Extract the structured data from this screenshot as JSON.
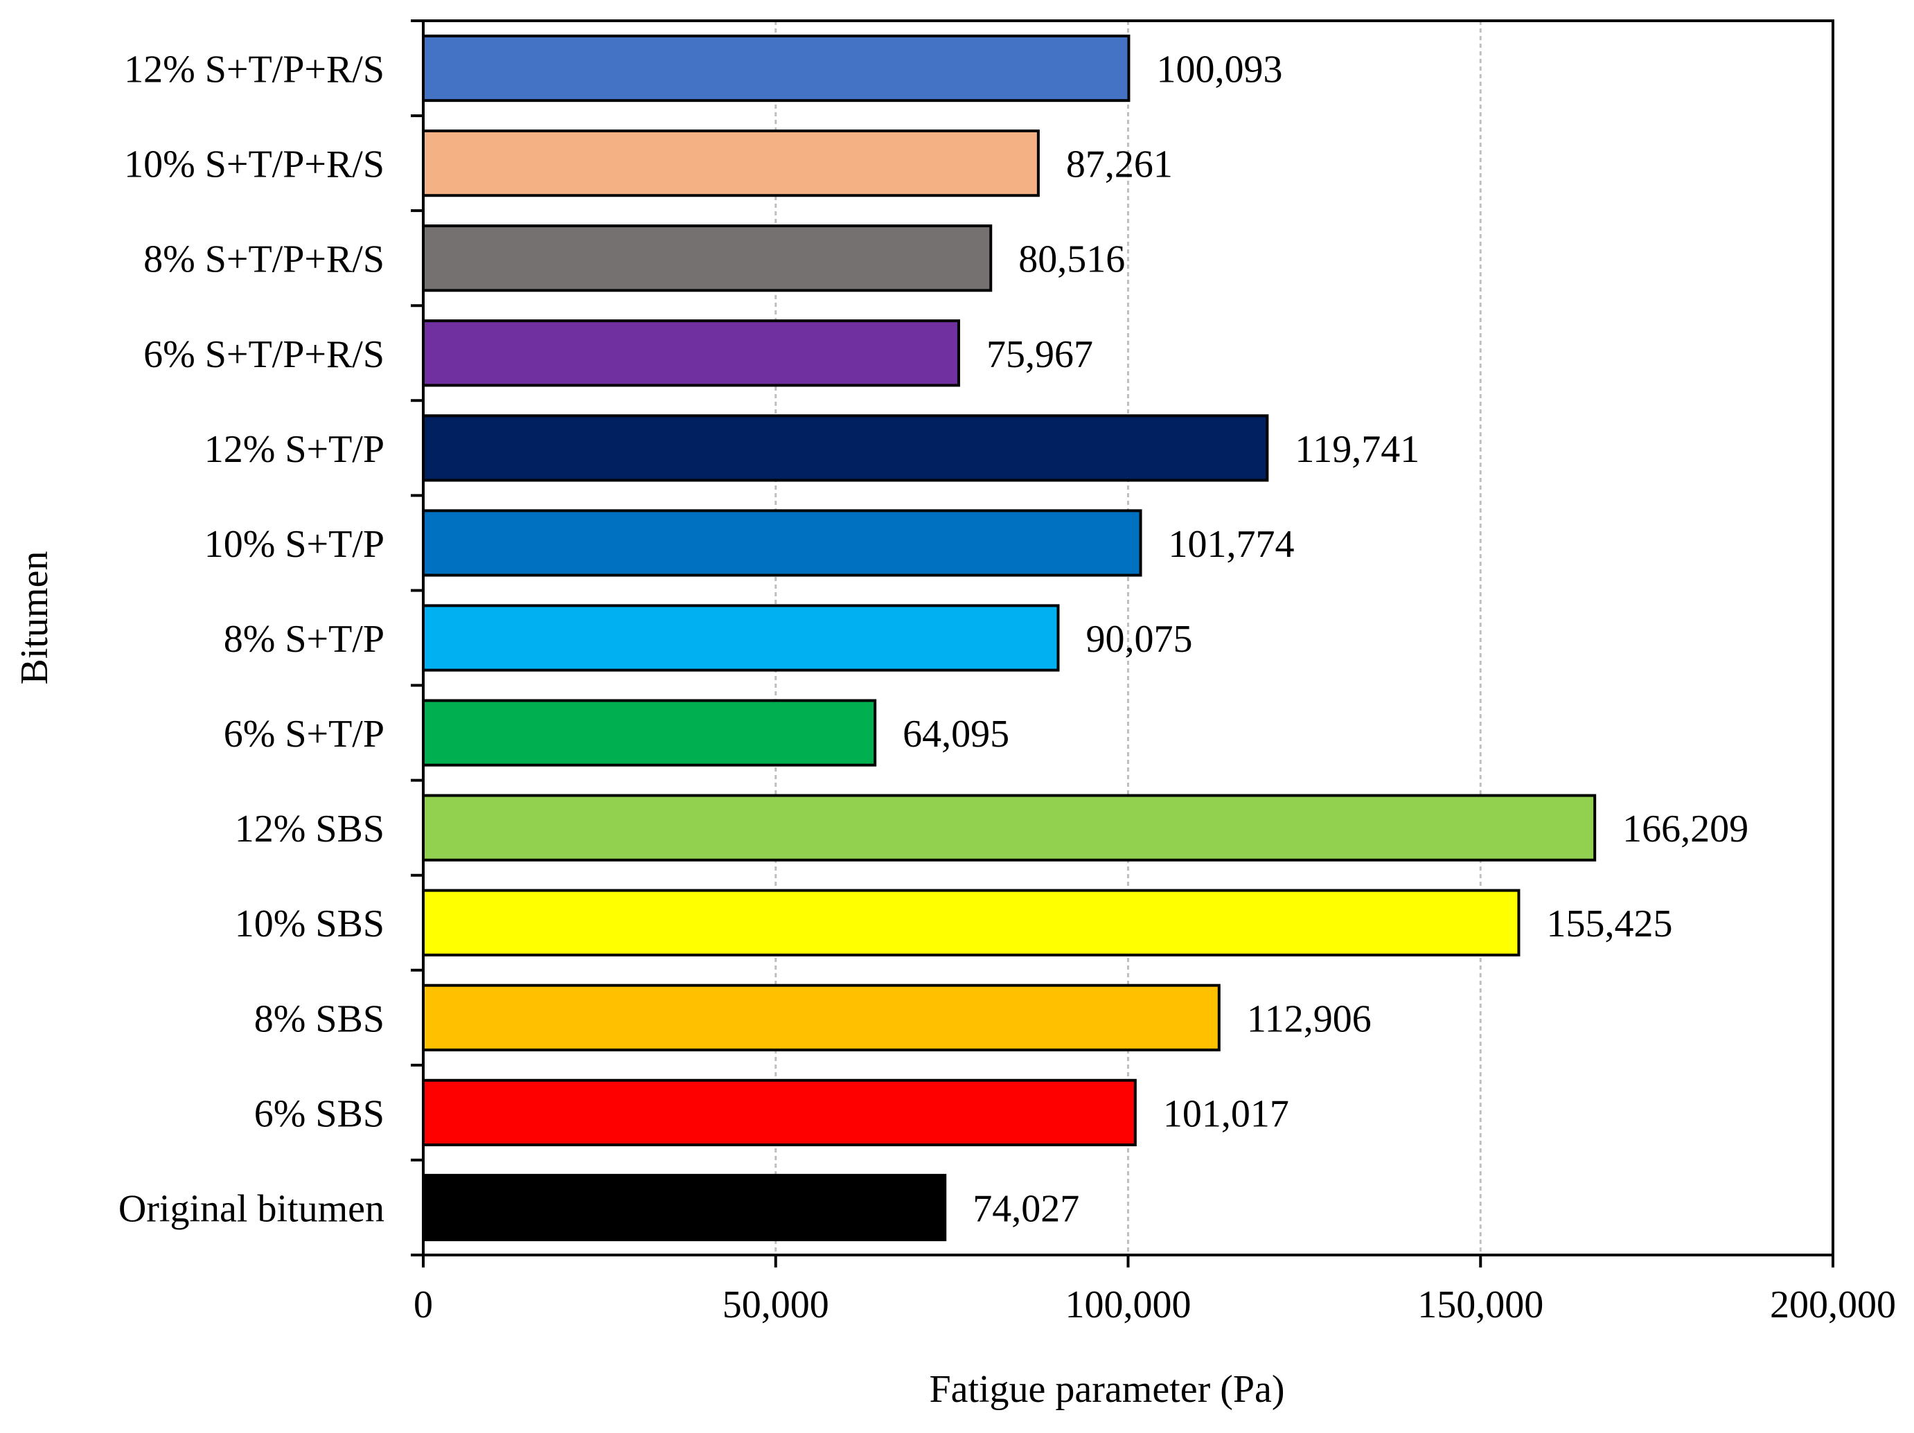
{
  "chart_data": {
    "type": "bar",
    "orientation": "horizontal",
    "title": "",
    "xlabel": "Fatigue parameter (Pa)",
    "ylabel": "Bitumen",
    "xlim": [
      0,
      200000
    ],
    "x_ticks": [
      0,
      50000,
      100000,
      150000,
      200000
    ],
    "x_tick_labels": [
      "0",
      "50,000",
      "100,000",
      "150,000",
      "200,000"
    ],
    "grid": "vertical dashed gridlines",
    "categories": [
      "12% S+T/P+R/S",
      "10% S+T/P+R/S",
      "8% S+T/P+R/S",
      "6% S+T/P+R/S",
      "12% S+T/P",
      "10% S+T/P",
      "8% S+T/P",
      "6% S+T/P",
      "12% SBS",
      "10% SBS",
      "8% SBS",
      "6% SBS",
      "Original bitumen"
    ],
    "values": [
      100093,
      87261,
      80516,
      75967,
      119741,
      101774,
      90075,
      64095,
      166209,
      155425,
      112906,
      101017,
      74027
    ],
    "value_labels": [
      "100,093",
      "87,261",
      "80,516",
      "75,967",
      "119,741",
      "101,774",
      "90,075",
      "64,095",
      "166,209",
      "155,425",
      "112,906",
      "101,017",
      "74,027"
    ],
    "colors": [
      "#4472C4",
      "#F4B183",
      "#767171",
      "#7030A0",
      "#002060",
      "#0070C0",
      "#00B0F0",
      "#00B050",
      "#92D050",
      "#FFFF00",
      "#FFC000",
      "#FF0000",
      "#000000"
    ]
  }
}
